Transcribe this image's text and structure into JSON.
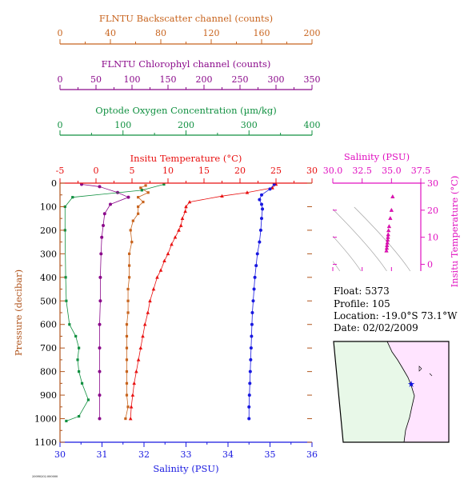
{
  "colors": {
    "backscatter": "#c8641e",
    "chlorophyll": "#8b0a8b",
    "oxygen": "#109040",
    "temperature": "#e81010",
    "salinity": "#1818e0",
    "pressure": "#b0541c",
    "ts_axis": "#e010c0",
    "panel_bg": "#cdeef8",
    "ts_bg": "#fbd8f6",
    "land": "#e8f8e8",
    "sea": "#ffe4ff"
  },
  "axes": {
    "backscatter": {
      "label": "FLNTU Backscatter channel (counts)",
      "ticks": [
        "0",
        "40",
        "80",
        "120",
        "160",
        "200"
      ]
    },
    "chlorophyll": {
      "label": "FLNTU Chlorophyl channel (counts)",
      "ticks": [
        "0",
        "50",
        "100",
        "150",
        "200",
        "250",
        "300",
        "350"
      ]
    },
    "oxygen": {
      "label": "Optode Oxygen Concentration (µm/kg)",
      "ticks": [
        "0",
        "100",
        "200",
        "300",
        "400"
      ]
    },
    "temperature": {
      "label": "Insitu Temperature (°C)",
      "ticks": [
        "-5",
        "0",
        "5",
        "10",
        "15",
        "20",
        "25",
        "30"
      ]
    },
    "salinity": {
      "label": "Salinity (PSU)",
      "ticks": [
        "30",
        "31",
        "32",
        "33",
        "34",
        "35",
        "36"
      ]
    },
    "pressure": {
      "label": "Pressure (decibar)",
      "ticks": [
        "0",
        "100",
        "200",
        "300",
        "400",
        "500",
        "600",
        "700",
        "800",
        "900",
        "1000",
        "1100"
      ]
    },
    "ts_salinity": {
      "label": "Salinity (PSU)",
      "ticks": [
        "30.0",
        "32.5",
        "35.0",
        "37.5"
      ]
    },
    "ts_temperature": {
      "label": "Insitu Temperature (°C)",
      "ticks": [
        "0",
        "10",
        "20",
        "30"
      ]
    }
  },
  "info": {
    "float": "Float:  5373",
    "profile": "Profile:  105",
    "location": "Location:  -19.0°S  73.1°W",
    "date": "Date:  02/02/2009"
  },
  "footer": "20090202.000000",
  "chart_data": [
    {
      "type": "line",
      "ylabel": "Pressure (decibar)",
      "ylim": [
        1100,
        0
      ],
      "series": [
        {
          "name": "Insitu Temperature (°C)",
          "xlim": [
            -5,
            30
          ],
          "points": [
            [
              25.0,
              5
            ],
            [
              24.5,
              20
            ],
            [
              21.0,
              40
            ],
            [
              17.5,
              55
            ],
            [
              13.0,
              80
            ],
            [
              12.5,
              100
            ],
            [
              12.4,
              120
            ],
            [
              12.0,
              150
            ],
            [
              11.8,
              180
            ],
            [
              11.5,
              200
            ],
            [
              11.0,
              230
            ],
            [
              10.5,
              260
            ],
            [
              10.0,
              300
            ],
            [
              9.5,
              330
            ],
            [
              9.0,
              370
            ],
            [
              8.5,
              400
            ],
            [
              8.0,
              450
            ],
            [
              7.5,
              500
            ],
            [
              7.2,
              550
            ],
            [
              6.8,
              600
            ],
            [
              6.5,
              650
            ],
            [
              6.2,
              700
            ],
            [
              5.9,
              750
            ],
            [
              5.6,
              800
            ],
            [
              5.3,
              850
            ],
            [
              5.1,
              900
            ],
            [
              4.9,
              950
            ],
            [
              4.8,
              1000
            ]
          ]
        },
        {
          "name": "Salinity (PSU)",
          "xlim": [
            30,
            36
          ],
          "points": [
            [
              35.1,
              5
            ],
            [
              35.0,
              25
            ],
            [
              34.8,
              50
            ],
            [
              34.75,
              70
            ],
            [
              34.8,
              90
            ],
            [
              34.82,
              110
            ],
            [
              34.8,
              150
            ],
            [
              34.78,
              200
            ],
            [
              34.75,
              250
            ],
            [
              34.7,
              300
            ],
            [
              34.67,
              350
            ],
            [
              34.64,
              400
            ],
            [
              34.62,
              450
            ],
            [
              34.6,
              500
            ],
            [
              34.58,
              550
            ],
            [
              34.57,
              600
            ],
            [
              34.56,
              650
            ],
            [
              34.55,
              700
            ],
            [
              34.54,
              750
            ],
            [
              34.53,
              800
            ],
            [
              34.52,
              850
            ],
            [
              34.51,
              900
            ],
            [
              34.5,
              950
            ],
            [
              34.5,
              1000
            ]
          ]
        },
        {
          "name": "FLNTU Backscatter channel (counts)",
          "xlim": [
            0,
            200
          ],
          "points": [
            [
              68,
              10
            ],
            [
              64,
              20
            ],
            [
              70,
              40
            ],
            [
              62,
              60
            ],
            [
              66,
              80
            ],
            [
              62,
              100
            ],
            [
              62,
              130
            ],
            [
              58,
              160
            ],
            [
              56,
              200
            ],
            [
              57,
              250
            ],
            [
              55,
              300
            ],
            [
              55,
              350
            ],
            [
              55,
              400
            ],
            [
              54,
              450
            ],
            [
              54,
              500
            ],
            [
              54,
              550
            ],
            [
              53,
              600
            ],
            [
              53,
              650
            ],
            [
              53,
              700
            ],
            [
              53,
              750
            ],
            [
              53,
              800
            ],
            [
              53,
              850
            ],
            [
              53,
              900
            ],
            [
              54,
              950
            ],
            [
              52,
              1000
            ]
          ]
        },
        {
          "name": "FLNTU Chlorophyl channel (counts)",
          "xlim": [
            0,
            350
          ],
          "points": [
            [
              30,
              5
            ],
            [
              55,
              15
            ],
            [
              80,
              40
            ],
            [
              95,
              60
            ],
            [
              70,
              90
            ],
            [
              62,
              130
            ],
            [
              60,
              180
            ],
            [
              58,
              230
            ],
            [
              57,
              300
            ],
            [
              56,
              400
            ],
            [
              56,
              500
            ],
            [
              55,
              600
            ],
            [
              55,
              700
            ],
            [
              55,
              800
            ],
            [
              55,
              900
            ],
            [
              55,
              1000
            ]
          ]
        },
        {
          "name": "Optode Oxygen Concentration (µm/kg)",
          "xlim": [
            0,
            400
          ],
          "points": [
            [
              165,
              5
            ],
            [
              130,
              30
            ],
            [
              20,
              60
            ],
            [
              8,
              100
            ],
            [
              8,
              200
            ],
            [
              9,
              400
            ],
            [
              10,
              500
            ],
            [
              15,
              600
            ],
            [
              25,
              650
            ],
            [
              30,
              700
            ],
            [
              28,
              750
            ],
            [
              30,
              800
            ],
            [
              35,
              850
            ],
            [
              45,
              920
            ],
            [
              30,
              990
            ],
            [
              10,
              1010
            ]
          ]
        }
      ]
    },
    {
      "type": "scatter",
      "xlabel": "Salinity (PSU)",
      "ylabel": "Insitu Temperature (°C)",
      "xlim": [
        30,
        37.5
      ],
      "ylim": [
        -2.5,
        30
      ],
      "points": [
        [
          35.1,
          25.0
        ],
        [
          35.0,
          20.0
        ],
        [
          34.9,
          17.0
        ],
        [
          34.8,
          14.0
        ],
        [
          34.75,
          12.5
        ],
        [
          34.72,
          11.0
        ],
        [
          34.7,
          10.0
        ],
        [
          34.68,
          9.0
        ],
        [
          34.65,
          8.0
        ],
        [
          34.62,
          7.0
        ],
        [
          34.6,
          6.0
        ],
        [
          34.57,
          5.0
        ]
      ]
    }
  ]
}
